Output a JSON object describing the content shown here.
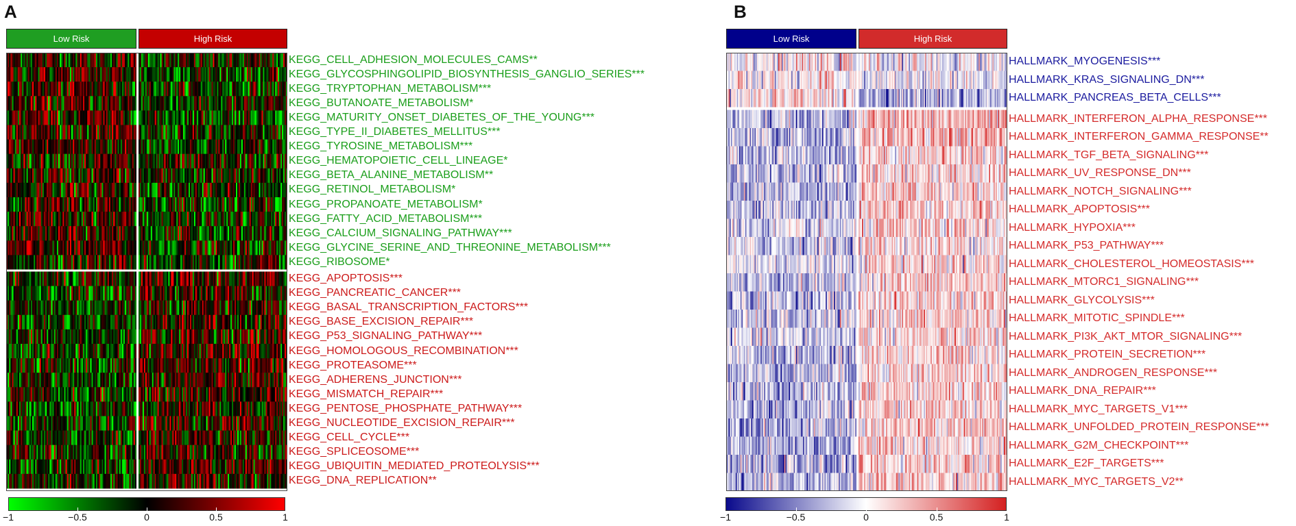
{
  "panel_a": {
    "letter": "A",
    "groups": [
      "Low Risk",
      "High Risk"
    ],
    "colors": {
      "low": "#00ff00",
      "mid": "#000000",
      "high": "#ff0000",
      "label_low": "#1a9e1a",
      "label_high": "#cc1a1a",
      "group_low": "#1f9e22",
      "group_high": "#c40000"
    },
    "colorbar_ticks": [
      "−1",
      "−0.5",
      "0",
      "0.5",
      "1"
    ]
  },
  "panel_b": {
    "letter": "B",
    "groups": [
      "Low Risk",
      "High Risk"
    ],
    "colors": {
      "low": "#0a0a8c",
      "mid": "#ffffff",
      "high": "#d42020",
      "label_low": "#1a1a9e",
      "label_high": "#d42a2a",
      "group_low": "#00008b",
      "group_high": "#d22b2b"
    },
    "colorbar_ticks": [
      "−1",
      "−0.5",
      "0",
      "0.5",
      "1"
    ]
  },
  "chart_data": [
    {
      "type": "heatmap",
      "panel": "A",
      "columns": [
        "Low Risk",
        "High Risk"
      ],
      "color_range": [
        -1,
        1
      ],
      "rows": [
        {
          "label": "KEGG_CELL_ADHESION_MOLECULES_CAMS**",
          "group": "low",
          "low_mean": 0.1,
          "high_mean": -0.1
        },
        {
          "label": "KEGG_GLYCOSPHINGOLIPID_BIOSYNTHESIS_GANGLIO_SERIES***",
          "group": "low",
          "low_mean": 0.15,
          "high_mean": -0.15
        },
        {
          "label": "KEGG_TRYPTOPHAN_METABOLISM***",
          "group": "low",
          "low_mean": 0.15,
          "high_mean": -0.15
        },
        {
          "label": "KEGG_BUTANOATE_METABOLISM*",
          "group": "low",
          "low_mean": 0.1,
          "high_mean": -0.1
        },
        {
          "label": "KEGG_MATURITY_ONSET_DIABETES_OF_THE_YOUNG***",
          "group": "low",
          "low_mean": 0.15,
          "high_mean": -0.15
        },
        {
          "label": "KEGG_TYPE_II_DIABETES_MELLITUS***",
          "group": "low",
          "low_mean": 0.15,
          "high_mean": -0.15
        },
        {
          "label": "KEGG_TYROSINE_METABOLISM***",
          "group": "low",
          "low_mean": 0.15,
          "high_mean": -0.15
        },
        {
          "label": "KEGG_HEMATOPOIETIC_CELL_LINEAGE*",
          "group": "low",
          "low_mean": 0.1,
          "high_mean": -0.1
        },
        {
          "label": "KEGG_BETA_ALANINE_METABOLISM**",
          "group": "low",
          "low_mean": 0.1,
          "high_mean": -0.1
        },
        {
          "label": "KEGG_RETINOL_METABOLISM*",
          "group": "low",
          "low_mean": 0.1,
          "high_mean": -0.1
        },
        {
          "label": "KEGG_PROPANOATE_METABOLISM*",
          "group": "low",
          "low_mean": 0.1,
          "high_mean": -0.1
        },
        {
          "label": "KEGG_FATTY_ACID_METABOLISM***",
          "group": "low",
          "low_mean": 0.15,
          "high_mean": -0.15
        },
        {
          "label": "KEGG_CALCIUM_SIGNALING_PATHWAY***",
          "group": "low",
          "low_mean": 0.15,
          "high_mean": -0.15
        },
        {
          "label": "KEGG_GLYCINE_SERINE_AND_THREONINE_METABOLISM***",
          "group": "low",
          "low_mean": 0.15,
          "high_mean": -0.15
        },
        {
          "label": "KEGG_RIBOSOME*",
          "group": "low",
          "low_mean": 0.1,
          "high_mean": -0.1
        },
        {
          "label": "KEGG_APOPTOSIS***",
          "group": "high",
          "low_mean": -0.15,
          "high_mean": 0.15
        },
        {
          "label": "KEGG_PANCREATIC_CANCER***",
          "group": "high",
          "low_mean": -0.15,
          "high_mean": 0.15
        },
        {
          "label": "KEGG_BASAL_TRANSCRIPTION_FACTORS***",
          "group": "high",
          "low_mean": -0.15,
          "high_mean": 0.15
        },
        {
          "label": "KEGG_BASE_EXCISION_REPAIR***",
          "group": "high",
          "low_mean": -0.15,
          "high_mean": 0.15
        },
        {
          "label": "KEGG_P53_SIGNALING_PATHWAY***",
          "group": "high",
          "low_mean": -0.15,
          "high_mean": 0.15
        },
        {
          "label": "KEGG_HOMOLOGOUS_RECOMBINATION***",
          "group": "high",
          "low_mean": -0.15,
          "high_mean": 0.15
        },
        {
          "label": "KEGG_PROTEASOME***",
          "group": "high",
          "low_mean": -0.15,
          "high_mean": 0.15
        },
        {
          "label": "KEGG_ADHERENS_JUNCTION***",
          "group": "high",
          "low_mean": -0.15,
          "high_mean": 0.15
        },
        {
          "label": "KEGG_MISMATCH_REPAIR***",
          "group": "high",
          "low_mean": -0.15,
          "high_mean": 0.15
        },
        {
          "label": "KEGG_PENTOSE_PHOSPHATE_PATHWAY***",
          "group": "high",
          "low_mean": -0.15,
          "high_mean": 0.15
        },
        {
          "label": "KEGG_NUCLEOTIDE_EXCISION_REPAIR***",
          "group": "high",
          "low_mean": -0.15,
          "high_mean": 0.15
        },
        {
          "label": "KEGG_CELL_CYCLE***",
          "group": "high",
          "low_mean": -0.15,
          "high_mean": 0.15
        },
        {
          "label": "KEGG_SPLICEOSOME***",
          "group": "high",
          "low_mean": -0.15,
          "high_mean": 0.15
        },
        {
          "label": "KEGG_UBIQUITIN_MEDIATED_PROTEOLYSIS***",
          "group": "high",
          "low_mean": -0.15,
          "high_mean": 0.15
        },
        {
          "label": "KEGG_DNA_REPLICATION**",
          "group": "high",
          "low_mean": -0.1,
          "high_mean": 0.1
        }
      ]
    },
    {
      "type": "heatmap",
      "panel": "B",
      "columns": [
        "Low Risk",
        "High Risk"
      ],
      "color_range": [
        -1,
        1
      ],
      "rows": [
        {
          "label": "HALLMARK_MYOGENESIS***",
          "group": "low",
          "low_mean": 0.05,
          "high_mean": -0.05
        },
        {
          "label": "HALLMARK_KRAS_SIGNALING_DN***",
          "group": "low",
          "low_mean": 0.05,
          "high_mean": -0.1
        },
        {
          "label": "HALLMARK_PANCREAS_BETA_CELLS***",
          "group": "low",
          "low_mean": 0.1,
          "high_mean": -0.3
        },
        {
          "label": "HALLMARK_INTERFERON_ALPHA_RESPONSE***",
          "group": "high",
          "low_mean": -0.3,
          "high_mean": 0.3
        },
        {
          "label": "HALLMARK_INTERFERON_GAMMA_RESPONSE**",
          "group": "high",
          "low_mean": -0.3,
          "high_mean": 0.3
        },
        {
          "label": "HALLMARK_TGF_BETA_SIGNALING***",
          "group": "high",
          "low_mean": -0.25,
          "high_mean": 0.2
        },
        {
          "label": "HALLMARK_UV_RESPONSE_DN***",
          "group": "high",
          "low_mean": -0.25,
          "high_mean": 0.2
        },
        {
          "label": "HALLMARK_NOTCH_SIGNALING***",
          "group": "high",
          "low_mean": -0.25,
          "high_mean": 0.2
        },
        {
          "label": "HALLMARK_APOPTOSIS***",
          "group": "high",
          "low_mean": -0.25,
          "high_mean": 0.2
        },
        {
          "label": "HALLMARK_HYPOXIA***",
          "group": "high",
          "low_mean": -0.2,
          "high_mean": 0.15
        },
        {
          "label": "HALLMARK_P53_PATHWAY***",
          "group": "high",
          "low_mean": -0.2,
          "high_mean": 0.15
        },
        {
          "label": "HALLMARK_CHOLESTEROL_HOMEOSTASIS***",
          "group": "high",
          "low_mean": -0.1,
          "high_mean": 0.2
        },
        {
          "label": "HALLMARK_MTORC1_SIGNALING***",
          "group": "high",
          "low_mean": -0.25,
          "high_mean": 0.2
        },
        {
          "label": "HALLMARK_GLYCOLYSIS***",
          "group": "high",
          "low_mean": -0.25,
          "high_mean": 0.2
        },
        {
          "label": "HALLMARK_MITOTIC_SPINDLE***",
          "group": "high",
          "low_mean": -0.25,
          "high_mean": 0.2
        },
        {
          "label": "HALLMARK_PI3K_AKT_MTOR_SIGNALING***",
          "group": "high",
          "low_mean": -0.2,
          "high_mean": 0.15
        },
        {
          "label": "HALLMARK_PROTEIN_SECRETION***",
          "group": "high",
          "low_mean": -0.3,
          "high_mean": 0.2
        },
        {
          "label": "HALLMARK_ANDROGEN_RESPONSE***",
          "group": "high",
          "low_mean": -0.25,
          "high_mean": 0.2
        },
        {
          "label": "HALLMARK_DNA_REPAIR***",
          "group": "high",
          "low_mean": -0.3,
          "high_mean": 0.2
        },
        {
          "label": "HALLMARK_MYC_TARGETS_V1***",
          "group": "high",
          "low_mean": -0.3,
          "high_mean": 0.2
        },
        {
          "label": "HALLMARK_UNFOLDED_PROTEIN_RESPONSE***",
          "group": "high",
          "low_mean": -0.3,
          "high_mean": 0.2
        },
        {
          "label": "HALLMARK_G2M_CHECKPOINT***",
          "group": "high",
          "low_mean": -0.35,
          "high_mean": 0.2
        },
        {
          "label": "HALLMARK_E2F_TARGETS***",
          "group": "high",
          "low_mean": -0.35,
          "high_mean": 0.2
        },
        {
          "label": "HALLMARK_MYC_TARGETS_V2**",
          "group": "high",
          "low_mean": -0.3,
          "high_mean": 0.2
        }
      ]
    }
  ]
}
